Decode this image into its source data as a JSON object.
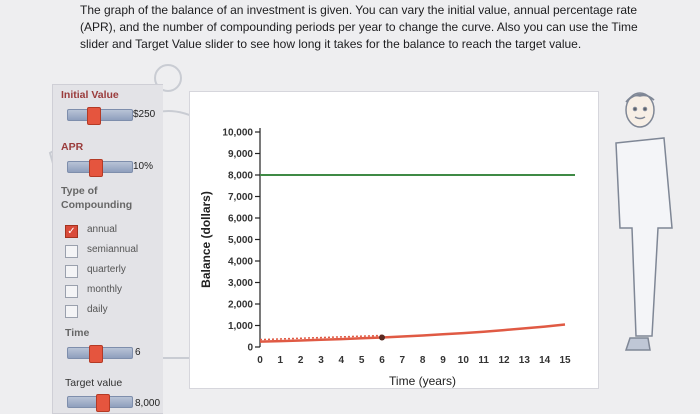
{
  "instructions": "The graph of the balance of an investment is given. You can vary the initial value, annual percentage rate (APR), and the number of compounding periods per year to change the curve. Also you can use the Time slider and Target Value slider to see how long it takes for the balance to reach the target value.",
  "controls": {
    "initial_value": {
      "label": "Initial Value",
      "value": "$250",
      "slider_position": 0.37
    },
    "apr": {
      "label": "APR",
      "value": "10%",
      "slider_position": 0.4
    },
    "compounding": {
      "label_line1": "Type of",
      "label_line2": "Compounding",
      "options": [
        {
          "label": "annual",
          "checked": true
        },
        {
          "label": "semiannual",
          "checked": false
        },
        {
          "label": "quarterly",
          "checked": false
        },
        {
          "label": "monthly",
          "checked": false
        },
        {
          "label": "daily",
          "checked": false
        }
      ],
      "checkmark": "✓"
    },
    "time": {
      "label": "Time",
      "value": "6",
      "slider_position": 0.4
    },
    "target_value": {
      "label": "Target value",
      "value": "8,000",
      "slider_position": 0.53
    }
  },
  "chart_data": {
    "type": "line",
    "title": "",
    "xlabel": "Time (years)",
    "ylabel": "Balance (dollars)",
    "x_ticks": [
      0,
      1,
      2,
      3,
      4,
      5,
      6,
      7,
      8,
      9,
      10,
      11,
      12,
      13,
      14,
      15
    ],
    "y_ticks": [
      "0",
      "1,000",
      "2,000",
      "3,000",
      "4,000",
      "5,000",
      "6,000",
      "7,000",
      "8,000",
      "9,000",
      "10,000"
    ],
    "xlim": [
      0,
      15
    ],
    "ylim": [
      0,
      10000
    ],
    "series": [
      {
        "values": [
          {
            "x": 0,
            "y": 250
          },
          {
            "x": 1,
            "y": 275
          },
          {
            "x": 2,
            "y": 302.5
          },
          {
            "x": 3,
            "y": 332.75
          },
          {
            "x": 4,
            "y": 366.03
          },
          {
            "x": 5,
            "y": 402.63
          },
          {
            "x": 6,
            "y": 442.89
          },
          {
            "x": 7,
            "y": 487.18
          },
          {
            "x": 8,
            "y": 535.9
          },
          {
            "x": 9,
            "y": 589.49
          },
          {
            "x": 10,
            "y": 648.44
          },
          {
            "x": 11,
            "y": 713.28
          },
          {
            "x": 12,
            "y": 784.61
          },
          {
            "x": 13,
            "y": 863.07
          },
          {
            "x": 14,
            "y": 949.38
          },
          {
            "x": 15,
            "y": 1044.31
          }
        ]
      }
    ],
    "target_line_value": 8000,
    "marker": {
      "x": 6,
      "y": 442.89
    },
    "colors": {
      "balance": "#e05a44",
      "target": "#3f8a45",
      "axis": "#222222"
    }
  }
}
